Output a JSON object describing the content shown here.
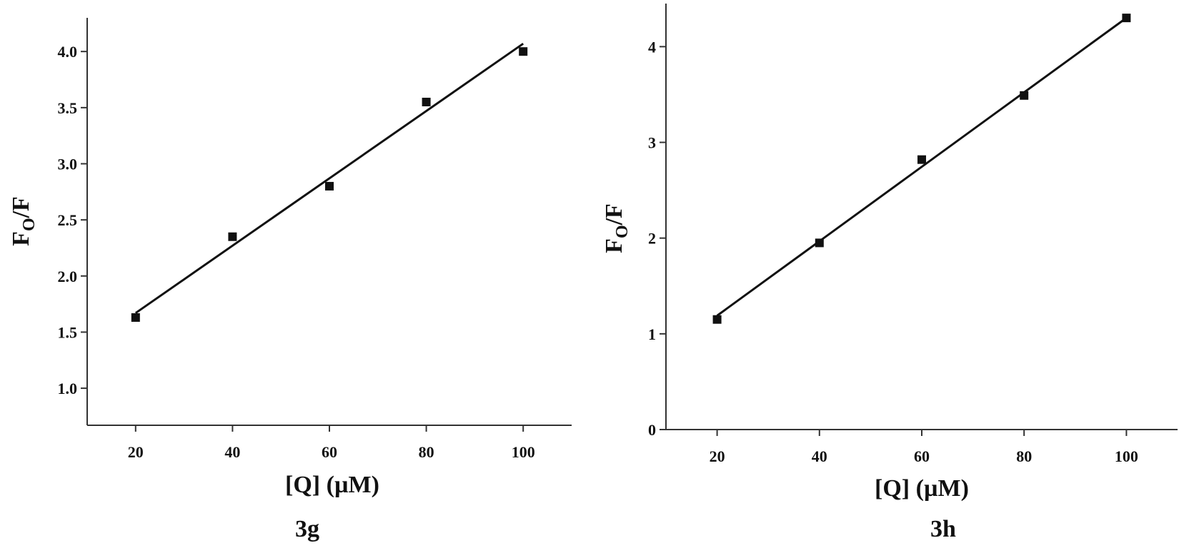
{
  "chart_data": [
    {
      "type": "scatter",
      "caption": "3g",
      "xlabel": "[Q] (µM)",
      "ylabel_main": "F",
      "ylabel_sub": "O",
      "ylabel_tail": "/F",
      "xlim": [
        10,
        110
      ],
      "ylim": [
        0.67,
        4.3
      ],
      "xticks": [
        20,
        40,
        60,
        80,
        100
      ],
      "xtick_labels": [
        "20",
        "40",
        "60",
        "80",
        "100"
      ],
      "yticks": [
        1.0,
        1.5,
        2.0,
        2.5,
        3.0,
        3.5,
        4.0
      ],
      "ytick_labels": [
        "1.0",
        "1.5",
        "2.0",
        "2.5",
        "3.0",
        "3.5",
        "4.0"
      ],
      "grid": false,
      "series": [
        {
          "x": [
            20,
            40,
            60,
            80,
            100
          ],
          "values": [
            1.63,
            2.35,
            2.8,
            3.55,
            4.0
          ]
        }
      ],
      "fit_line": {
        "x": [
          20,
          100
        ],
        "y": [
          1.67,
          4.07
        ]
      },
      "colors": {
        "marker": "#111111",
        "line": "#111111",
        "axis": "#333333"
      }
    },
    {
      "type": "scatter",
      "caption": "3h",
      "xlabel": "[Q] (µM)",
      "ylabel_main": "F",
      "ylabel_sub": "O",
      "ylabel_tail": "/F",
      "xlim": [
        10,
        110
      ],
      "ylim": [
        0,
        4.45
      ],
      "xticks": [
        20,
        40,
        60,
        80,
        100
      ],
      "xtick_labels": [
        "20",
        "40",
        "60",
        "80",
        "100"
      ],
      "yticks": [
        0,
        1,
        2,
        3,
        4
      ],
      "ytick_labels": [
        "0",
        "1",
        "2",
        "3",
        "4"
      ],
      "grid": false,
      "series": [
        {
          "x": [
            20,
            40,
            60,
            80,
            100
          ],
          "values": [
            1.15,
            1.95,
            2.82,
            3.49,
            4.3
          ]
        }
      ],
      "fit_line": {
        "x": [
          20,
          100
        ],
        "y": [
          1.19,
          4.3
        ]
      },
      "colors": {
        "marker": "#111111",
        "line": "#111111",
        "axis": "#333333"
      }
    }
  ]
}
